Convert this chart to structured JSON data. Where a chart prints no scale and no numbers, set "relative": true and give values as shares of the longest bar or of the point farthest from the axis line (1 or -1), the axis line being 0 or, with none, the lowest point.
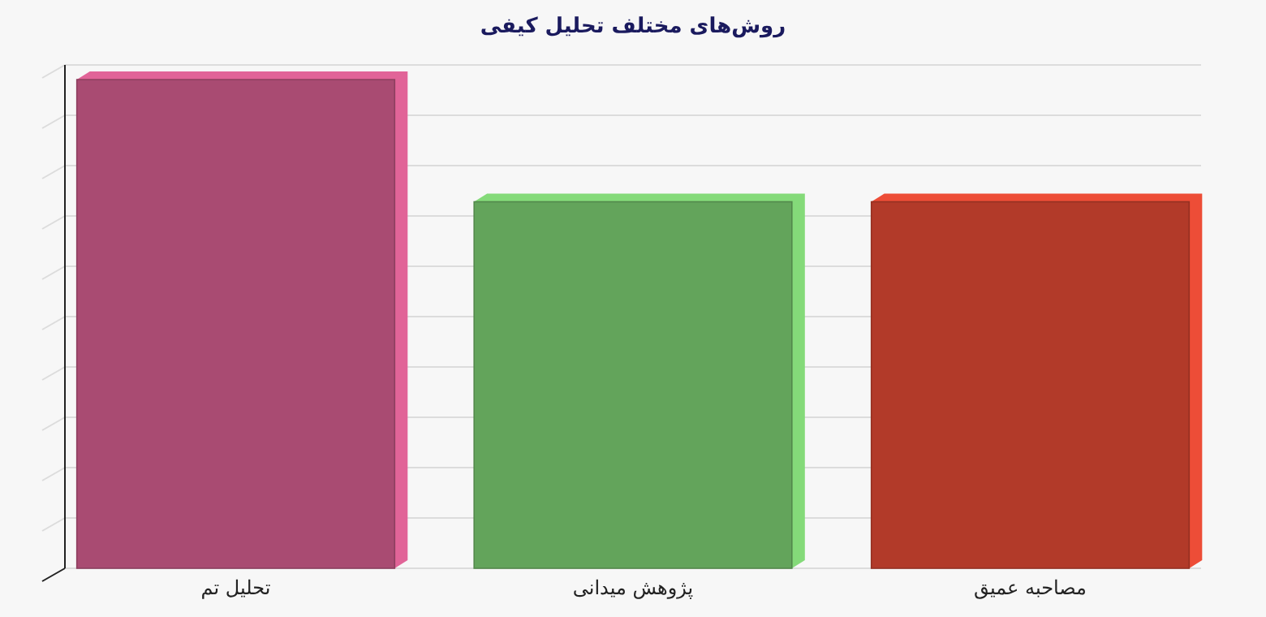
{
  "chart_data": {
    "type": "bar",
    "title": "روش‌های مختلف تحلیل کیفی",
    "categories": [
      "تحلیل تم",
      "پژوهش میدانی",
      "مصاحبه عمیق"
    ],
    "values": [
      1,
      0.75,
      0.75
    ],
    "colors": [
      "#a94b72",
      "#63a45b",
      "#b23a29"
    ],
    "relative": true,
    "grid": "y"
  }
}
